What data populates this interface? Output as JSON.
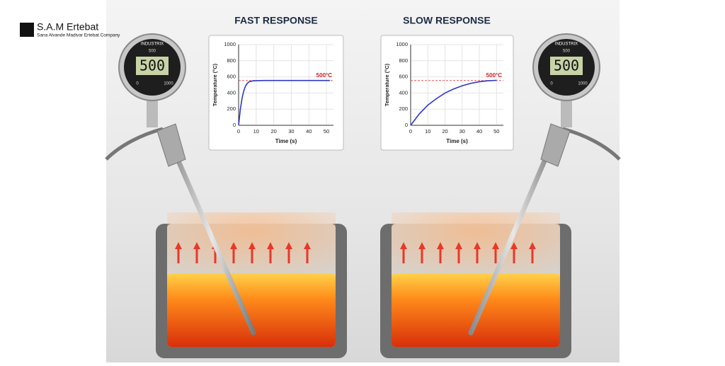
{
  "logo": {
    "name": "S.A.M Ertebat",
    "tagline": "Sana Alvande Madivar Ertebat Company"
  },
  "gauges": [
    {
      "brand": "INDUSTRIX",
      "setpoint": "500",
      "reading": "500",
      "min": "0",
      "max": "1000"
    },
    {
      "brand": "INDUSTRIX",
      "setpoint": "500",
      "reading": "500",
      "min": "0",
      "max": "1000"
    }
  ],
  "chart_data": [
    {
      "type": "line",
      "title": "FAST RESPONSE",
      "xlabel": "Time (s)",
      "ylabel": "Temperature (°C)",
      "x": [
        0,
        1,
        2,
        3,
        4,
        5,
        6,
        8,
        10,
        15,
        20,
        30,
        40,
        52
      ],
      "values": [
        0,
        200,
        340,
        430,
        490,
        520,
        540,
        550,
        553,
        555,
        555,
        555,
        555,
        555
      ],
      "color": "#2e36c8",
      "xlim": [
        0,
        54
      ],
      "ylim": [
        0,
        1000
      ],
      "xticks": [
        0,
        10,
        20,
        30,
        40,
        50
      ],
      "yticks": [
        0,
        200,
        400,
        600,
        800,
        1000
      ],
      "reference_line": 555,
      "reference_color": "#e05050",
      "annotation": "500°C"
    },
    {
      "type": "line",
      "title": "SLOW RESPONSE",
      "xlabel": "Time (s)",
      "ylabel": "Temperature (°C)",
      "x": [
        0,
        5,
        10,
        15,
        20,
        25,
        30,
        35,
        40,
        45,
        50
      ],
      "values": [
        0,
        140,
        250,
        330,
        400,
        450,
        490,
        520,
        540,
        552,
        557
      ],
      "color": "#2e36c8",
      "xlim": [
        0,
        54
      ],
      "ylim": [
        0,
        1000
      ],
      "xticks": [
        0,
        10,
        20,
        30,
        40,
        50
      ],
      "yticks": [
        0,
        200,
        400,
        600,
        800,
        1000
      ],
      "reference_line": 555,
      "reference_color": "#e05050",
      "annotation": "500°C"
    }
  ]
}
